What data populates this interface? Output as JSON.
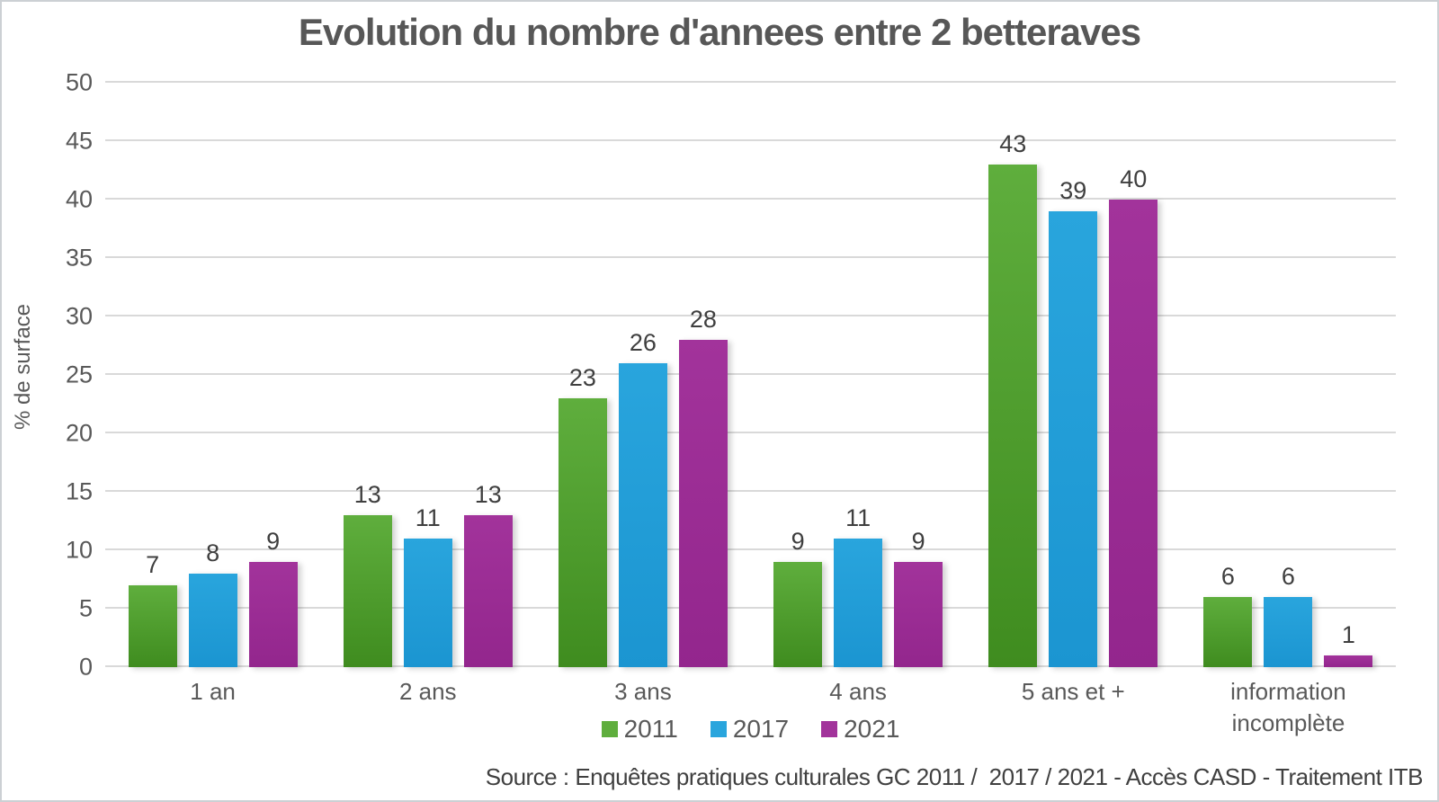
{
  "title": "Evolution du nombre d'annees entre 2 betteraves",
  "y_axis_title": "% de surface",
  "source_note": "Source : Enquêtes pratiques culturales GC 2011 /  2017 / 2021 - Accès CASD - Traitement ITB",
  "colors": {
    "green_2011_top": "#5fae3d",
    "green_2011_bottom": "#3f8c1f",
    "blue_2017_top": "#29a5dd",
    "blue_2017_bottom": "#1b95d1",
    "purple_2021_top": "#a2339b",
    "purple_2021_bottom": "#93268d",
    "gridline": "#d9d9d9",
    "text_gray": "#595959"
  },
  "chart_data": {
    "type": "bar",
    "title": "Evolution du nombre d'annees entre 2 betteraves",
    "categories": [
      "1 an",
      "2 ans",
      "3 ans",
      "4 ans",
      "5 ans et +",
      "information incomplète"
    ],
    "series": [
      {
        "name": "2011",
        "color_top": "#5fae3d",
        "color_bottom": "#3f8c1f",
        "values": [
          7,
          13,
          23,
          9,
          43,
          6
        ]
      },
      {
        "name": "2017",
        "color_top": "#29a5dd",
        "color_bottom": "#1b95d1",
        "values": [
          8,
          11,
          26,
          11,
          39,
          6
        ]
      },
      {
        "name": "2021",
        "color_top": "#a2339b",
        "color_bottom": "#93268d",
        "values": [
          9,
          13,
          28,
          9,
          40,
          1
        ]
      }
    ],
    "xlabel": "",
    "ylabel": "% de surface",
    "ylim": [
      0,
      50
    ],
    "ytick_step": 5,
    "grid": true,
    "legend_position": "bottom"
  }
}
